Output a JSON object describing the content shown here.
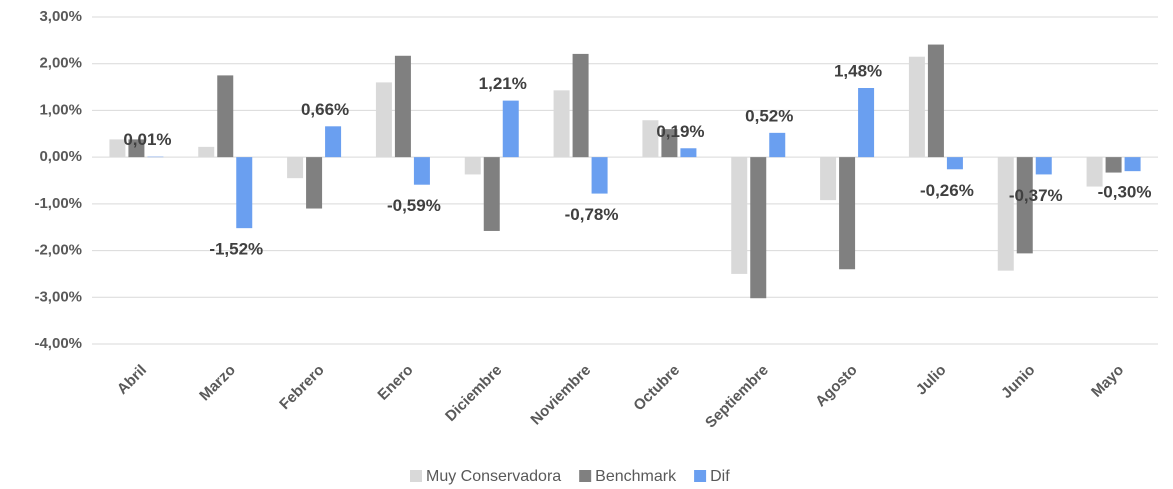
{
  "chart_data": {
    "type": "bar",
    "categories": [
      "Abril",
      "Marzo",
      "Febrero",
      "Enero",
      "Diciembre",
      "Noviembre",
      "Octubre",
      "Septiembre",
      "Agosto",
      "Julio",
      "Junio",
      "Mayo"
    ],
    "series": [
      {
        "name": "Muy Conservadora",
        "color": "#d9d9d9",
        "values": [
          0.38,
          0.22,
          -0.45,
          1.6,
          -0.37,
          1.43,
          0.79,
          -2.5,
          -0.92,
          2.15,
          -2.43,
          -0.63
        ]
      },
      {
        "name": "Benchmark",
        "color": "#808080",
        "values": [
          0.38,
          1.75,
          -1.1,
          2.17,
          -1.58,
          2.21,
          0.6,
          -3.02,
          -2.4,
          2.41,
          -2.06,
          -0.33
        ]
      },
      {
        "name": "Dif",
        "color": "#6a9ff0",
        "values": [
          0.01,
          -1.52,
          0.66,
          -0.59,
          1.21,
          -0.78,
          0.19,
          0.52,
          1.48,
          -0.26,
          -0.37,
          -0.3
        ],
        "value_labels": [
          "0,01%",
          "-1,52%",
          "0,66%",
          "-0,59%",
          "1,21%",
          "-0,78%",
          "0,19%",
          "0,52%",
          "1,48%",
          "-0,26%",
          "-0,37%",
          "-0,30%"
        ]
      }
    ],
    "ylim": [
      -4,
      3
    ],
    "yticks": [
      {
        "value": -4,
        "label": "-4,00%"
      },
      {
        "value": -3,
        "label": "-3,00%"
      },
      {
        "value": -2,
        "label": "-2,00%"
      },
      {
        "value": -1,
        "label": "-1,00%"
      },
      {
        "value": 0,
        "label": "0,00%"
      },
      {
        "value": 1,
        "label": "1,00%"
      },
      {
        "value": 2,
        "label": "2,00%"
      },
      {
        "value": 3,
        "label": "3,00%"
      }
    ],
    "grid": true,
    "legend": "bottom"
  }
}
